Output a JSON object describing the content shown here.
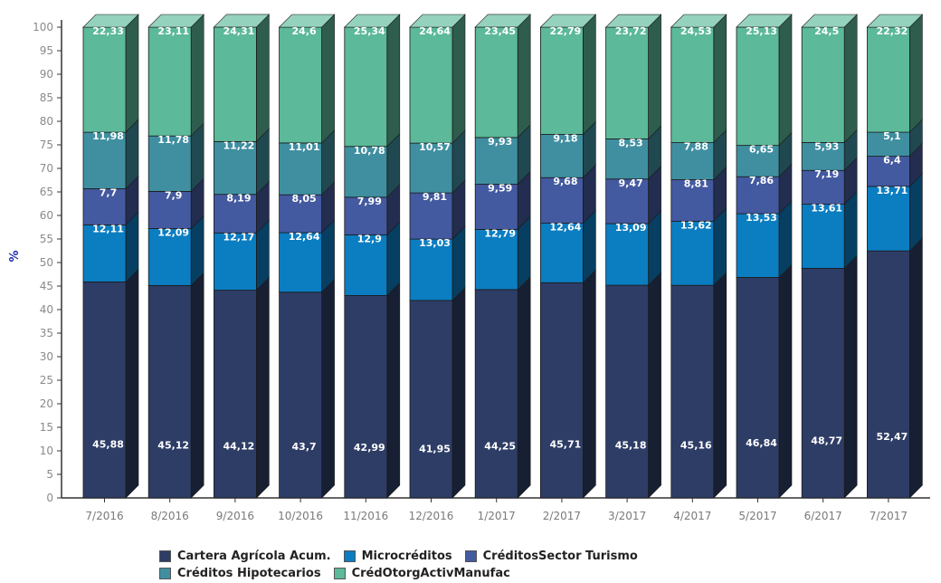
{
  "chart_data": {
    "type": "bar",
    "stacked": true,
    "style": "3d",
    "ylabel": "%",
    "ylim": [
      0,
      100
    ],
    "yticks": [
      0,
      5,
      10,
      15,
      20,
      25,
      30,
      35,
      40,
      45,
      50,
      55,
      60,
      65,
      70,
      75,
      80,
      85,
      90,
      95,
      100
    ],
    "categories": [
      "7/2016",
      "8/2016",
      "9/2016",
      "10/2016",
      "11/2016",
      "12/2016",
      "1/2017",
      "2/2017",
      "3/2017",
      "4/2017",
      "5/2017",
      "6/2017",
      "7/2017"
    ],
    "series": [
      {
        "name": "Cartera Agrícola Acum.",
        "color": "#2e3d66",
        "values": [
          45.88,
          45.12,
          44.12,
          43.7,
          42.99,
          41.95,
          44.25,
          45.71,
          45.18,
          45.16,
          46.84,
          48.77,
          52.47
        ],
        "labels": [
          "45,88",
          "45,12",
          "44,12",
          "43,7",
          "42,99",
          "41,95",
          "44,25",
          "45,71",
          "45,18",
          "45,16",
          "46,84",
          "48,77",
          "52,47"
        ]
      },
      {
        "name": "Microcréditos",
        "color": "#0b7dc1",
        "values": [
          12.11,
          12.09,
          12.17,
          12.64,
          12.9,
          13.03,
          12.79,
          12.64,
          13.09,
          13.62,
          13.53,
          13.61,
          13.71
        ],
        "labels": [
          "12,11",
          "12,09",
          "12,17",
          "12,64",
          "12,9",
          "13,03",
          "12,79",
          "12,64",
          "13,09",
          "13,62",
          "13,53",
          "13,61",
          "13,71"
        ]
      },
      {
        "name": "CréditosSector Turismo",
        "color": "#4359a0",
        "values": [
          7.7,
          7.9,
          8.19,
          8.05,
          7.99,
          9.81,
          9.59,
          9.68,
          9.47,
          8.81,
          7.86,
          7.19,
          6.4
        ],
        "labels": [
          "7,7",
          "7,9",
          "8,19",
          "8,05",
          "7,99",
          "9,81",
          "9,59",
          "9,68",
          "9,47",
          "8,81",
          "7,86",
          "7,19",
          "6,4"
        ]
      },
      {
        "name": "Créditos Hipotecarios",
        "color": "#3f8fa1",
        "values": [
          11.98,
          11.78,
          11.22,
          11.01,
          10.78,
          10.57,
          9.93,
          9.18,
          8.53,
          7.88,
          6.65,
          5.93,
          5.1
        ],
        "labels": [
          "11,98",
          "11,78",
          "11,22",
          "11,01",
          "10,78",
          "10,57",
          "9,93",
          "9,18",
          "8,53",
          "7,88",
          "6,65",
          "5,93",
          "5,1"
        ]
      },
      {
        "name": "CrédOtorgActivManufac",
        "color": "#5cb99a",
        "values": [
          22.33,
          23.11,
          24.31,
          24.6,
          25.34,
          24.64,
          23.45,
          22.79,
          23.72,
          24.53,
          25.13,
          24.5,
          22.32
        ],
        "labels": [
          "22,33",
          "23,11",
          "24,31",
          "24,6",
          "25,34",
          "24,64",
          "23,45",
          "22,79",
          "23,72",
          "24,53",
          "25,13",
          "24,5",
          "22,32"
        ]
      }
    ]
  }
}
